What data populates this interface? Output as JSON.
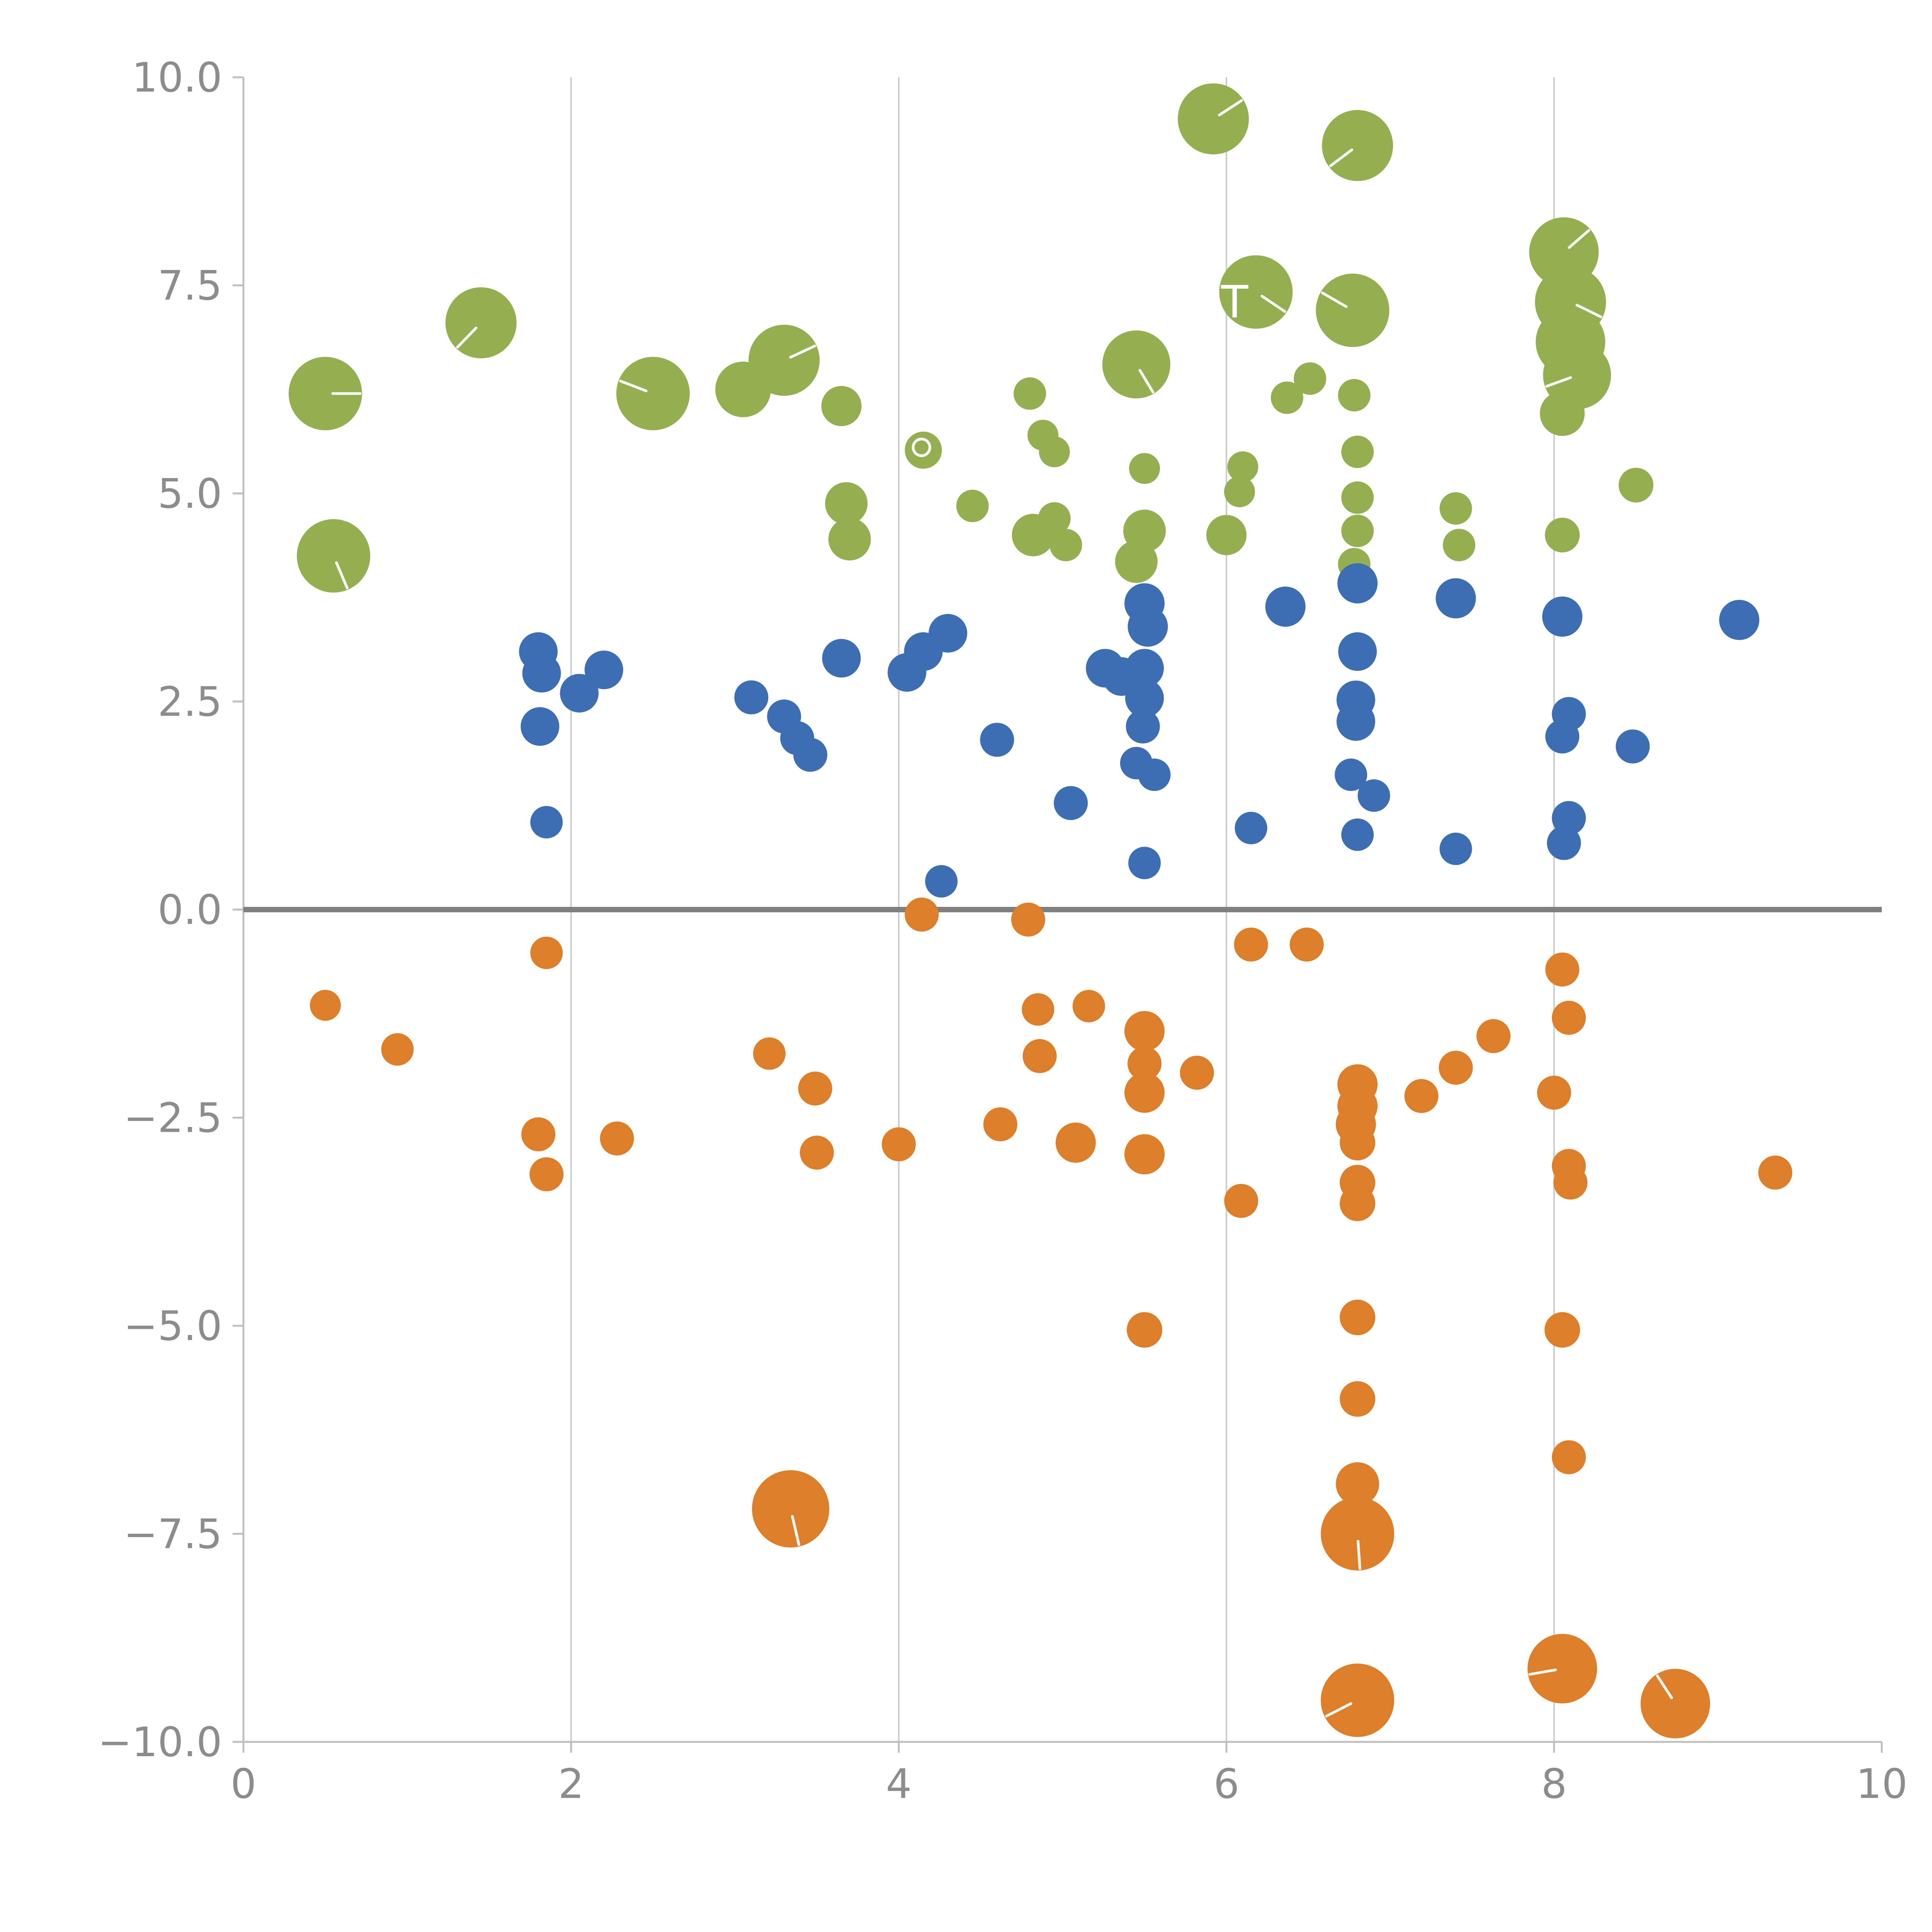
{
  "chart_data": {
    "type": "scatter",
    "title": "",
    "xlabel": "",
    "ylabel": "",
    "xlim": [
      0,
      10
    ],
    "ylim": [
      -10,
      10
    ],
    "x_ticks": [
      0,
      2,
      4,
      6,
      8,
      10
    ],
    "x_tick_labels": [
      "0",
      "2",
      "4",
      "6",
      "8",
      "10"
    ],
    "y_ticks": [
      -10.0,
      -7.5,
      -5.0,
      -2.5,
      0.0,
      2.5,
      5.0,
      7.5,
      10.0
    ],
    "y_tick_labels": [
      "−10.0",
      "−7.5",
      "−5.0",
      "−2.5",
      "0.0",
      "2.5",
      "5.0",
      "7.5",
      "10.0"
    ],
    "grid": "vertical-only",
    "zero_line": true,
    "legend_position": "none",
    "colors": {
      "grid": "#cccccc",
      "axis": "#bfbfbf",
      "zero_line": "#7f7f7f",
      "tick_text": "#8c8c8c",
      "background": "#ffffff"
    },
    "annotation": {
      "text": "T",
      "x": 6.05,
      "y": 7.3,
      "color": "#ffffff"
    },
    "series": [
      {
        "name": "green",
        "color": "#94af52",
        "points": [
          [
            0.5,
            6.2,
            95
          ],
          [
            0.55,
            4.25,
            95
          ],
          [
            1.45,
            7.05,
            92
          ],
          [
            2.5,
            6.2,
            95
          ],
          [
            3.05,
            6.25,
            72
          ],
          [
            3.3,
            6.6,
            92
          ],
          [
            3.65,
            6.05,
            52
          ],
          [
            3.68,
            4.88,
            55
          ],
          [
            3.7,
            4.45,
            55
          ],
          [
            4.15,
            5.52,
            48,
            "ring"
          ],
          [
            4.45,
            4.85,
            42
          ],
          [
            4.8,
            6.2,
            42
          ],
          [
            4.88,
            5.7,
            40
          ],
          [
            4.95,
            5.5,
            40
          ],
          [
            4.82,
            4.5,
            55
          ],
          [
            4.95,
            4.7,
            42
          ],
          [
            5.02,
            4.38,
            42
          ],
          [
            5.45,
            6.55,
            88
          ],
          [
            5.5,
            5.3,
            40
          ],
          [
            5.5,
            4.55,
            55
          ],
          [
            5.45,
            4.18,
            55
          ],
          [
            5.92,
            9.5,
            92
          ],
          [
            6.18,
            7.42,
            95
          ],
          [
            6.37,
            6.15,
            42
          ],
          [
            6.51,
            6.38,
            42
          ],
          [
            6.1,
            5.32,
            40
          ],
          [
            6.08,
            5.02,
            40
          ],
          [
            6.0,
            4.5,
            52
          ],
          [
            6.78,
            4.15,
            42
          ],
          [
            6.8,
            9.18,
            92
          ],
          [
            6.77,
            7.2,
            95
          ],
          [
            6.78,
            6.18,
            42
          ],
          [
            6.8,
            5.5,
            42
          ],
          [
            6.8,
            4.95,
            42
          ],
          [
            6.8,
            4.55,
            42
          ],
          [
            7.4,
            4.82,
            42
          ],
          [
            7.42,
            4.38,
            42
          ],
          [
            8.06,
            7.9,
            90
          ],
          [
            8.1,
            7.3,
            92
          ],
          [
            8.1,
            6.82,
            90
          ],
          [
            8.14,
            6.42,
            88
          ],
          [
            8.05,
            5.96,
            58
          ],
          [
            8.05,
            4.5,
            45
          ],
          [
            8.5,
            5.1,
            45
          ]
        ]
      },
      {
        "name": "blue",
        "color": "#3d6eb4",
        "points": [
          [
            1.8,
            3.1,
            50
          ],
          [
            1.82,
            2.84,
            50
          ],
          [
            1.81,
            2.2,
            50
          ],
          [
            1.85,
            1.05,
            42
          ],
          [
            2.05,
            2.6,
            50
          ],
          [
            2.2,
            2.88,
            50
          ],
          [
            3.1,
            2.55,
            44
          ],
          [
            3.3,
            2.32,
            44
          ],
          [
            3.38,
            2.06,
            44
          ],
          [
            3.46,
            1.86,
            44
          ],
          [
            3.65,
            3.02,
            50
          ],
          [
            4.05,
            2.85,
            50
          ],
          [
            4.15,
            3.1,
            50
          ],
          [
            4.3,
            3.32,
            50
          ],
          [
            4.26,
            0.34,
            42
          ],
          [
            4.6,
            2.04,
            44
          ],
          [
            5.05,
            1.28,
            44
          ],
          [
            5.26,
            2.9,
            50
          ],
          [
            5.36,
            2.8,
            50
          ],
          [
            5.5,
            3.68,
            52
          ],
          [
            5.52,
            3.4,
            52
          ],
          [
            5.5,
            2.9,
            50
          ],
          [
            5.5,
            2.54,
            50
          ],
          [
            5.49,
            2.2,
            44
          ],
          [
            5.45,
            1.76,
            42
          ],
          [
            5.56,
            1.62,
            42
          ],
          [
            5.5,
            0.56,
            42
          ],
          [
            6.15,
            0.98,
            42
          ],
          [
            6.36,
            3.64,
            52
          ],
          [
            6.8,
            3.92,
            52
          ],
          [
            6.8,
            3.1,
            50
          ],
          [
            6.79,
            2.52,
            50
          ],
          [
            6.79,
            2.26,
            50
          ],
          [
            6.76,
            1.62,
            42
          ],
          [
            6.9,
            1.37,
            42
          ],
          [
            6.8,
            0.9,
            42
          ],
          [
            7.4,
            3.74,
            52
          ],
          [
            7.4,
            0.73,
            42
          ],
          [
            8.05,
            3.52,
            52
          ],
          [
            8.09,
            2.35,
            44
          ],
          [
            8.05,
            2.08,
            44
          ],
          [
            8.09,
            1.1,
            44
          ],
          [
            8.06,
            0.8,
            44
          ],
          [
            8.48,
            1.96,
            44
          ],
          [
            9.13,
            3.48,
            52
          ]
        ]
      },
      {
        "name": "orange",
        "color": "#dd7e2a",
        "points": [
          [
            0.5,
            -1.15,
            40
          ],
          [
            0.94,
            -1.68,
            42
          ],
          [
            1.85,
            -0.52,
            42
          ],
          [
            1.8,
            -2.7,
            44
          ],
          [
            1.85,
            -3.18,
            44
          ],
          [
            2.28,
            -2.75,
            44
          ],
          [
            3.21,
            -1.73,
            42
          ],
          [
            3.49,
            -2.15,
            44
          ],
          [
            3.5,
            -2.92,
            44
          ],
          [
            3.34,
            -7.2,
            100
          ],
          [
            4.0,
            -2.82,
            44
          ],
          [
            4.14,
            -0.06,
            44
          ],
          [
            4.62,
            -2.58,
            44
          ],
          [
            4.79,
            -0.12,
            44
          ],
          [
            4.85,
            -1.2,
            42
          ],
          [
            4.86,
            -1.76,
            44
          ],
          [
            5.08,
            -2.8,
            52
          ],
          [
            5.16,
            -1.16,
            42
          ],
          [
            5.5,
            -1.46,
            52
          ],
          [
            5.5,
            -1.85,
            44
          ],
          [
            5.5,
            -2.2,
            52
          ],
          [
            5.5,
            -2.94,
            52
          ],
          [
            5.82,
            -1.96,
            44
          ],
          [
            5.5,
            -5.05,
            46
          ],
          [
            6.09,
            -3.5,
            44
          ],
          [
            6.15,
            -0.42,
            44
          ],
          [
            6.49,
            -0.42,
            44
          ],
          [
            6.8,
            -2.1,
            52
          ],
          [
            6.8,
            -2.36,
            52
          ],
          [
            6.79,
            -2.58,
            52
          ],
          [
            6.8,
            -2.8,
            46
          ],
          [
            6.8,
            -3.28,
            46
          ],
          [
            6.8,
            -3.53,
            46
          ],
          [
            6.8,
            -4.9,
            46
          ],
          [
            6.8,
            -5.88,
            46
          ],
          [
            6.8,
            -6.9,
            56
          ],
          [
            6.8,
            -7.5,
            95
          ],
          [
            6.8,
            -9.5,
            95
          ],
          [
            7.19,
            -2.24,
            44
          ],
          [
            7.4,
            -1.9,
            44
          ],
          [
            7.63,
            -1.52,
            44
          ],
          [
            8.0,
            -2.2,
            44
          ],
          [
            8.05,
            -0.72,
            44
          ],
          [
            8.09,
            -1.3,
            44
          ],
          [
            8.09,
            -3.08,
            44
          ],
          [
            8.1,
            -3.28,
            44
          ],
          [
            8.05,
            -5.05,
            46
          ],
          [
            8.09,
            -6.58,
            44
          ],
          [
            8.05,
            -9.12,
            90
          ],
          [
            8.74,
            -9.54,
            90
          ],
          [
            9.35,
            -3.16,
            44
          ]
        ]
      }
    ]
  }
}
